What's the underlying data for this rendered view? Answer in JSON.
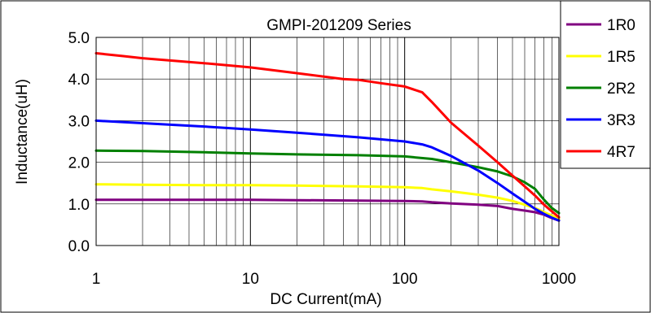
{
  "chart_data": {
    "type": "line",
    "title": "GMPI-201209 Series",
    "xlabel": "DC Current(mA)",
    "ylabel": "Inductance(uH)",
    "xscale": "log",
    "xlim": [
      1,
      1000
    ],
    "ylim": [
      0,
      5
    ],
    "x_ticks": [
      "1",
      "10",
      "100",
      "1000"
    ],
    "y_ticks": [
      "0.0",
      "1.0",
      "2.0",
      "3.0",
      "4.0",
      "5.0"
    ],
    "grid": true,
    "legend_position": "right",
    "series": [
      {
        "name": "1R0",
        "color": "#800080",
        "points": [
          [
            1,
            1.1
          ],
          [
            2,
            1.1
          ],
          [
            5,
            1.1
          ],
          [
            10,
            1.1
          ],
          [
            20,
            1.09
          ],
          [
            50,
            1.08
          ],
          [
            100,
            1.07
          ],
          [
            130,
            1.06
          ],
          [
            150,
            1.04
          ],
          [
            200,
            1.01
          ],
          [
            300,
            0.98
          ],
          [
            400,
            0.95
          ],
          [
            500,
            0.88
          ],
          [
            600,
            0.84
          ],
          [
            700,
            0.8
          ],
          [
            800,
            0.74
          ],
          [
            900,
            0.66
          ],
          [
            1000,
            0.6
          ]
        ]
      },
      {
        "name": "1R5",
        "color": "#ffff00",
        "points": [
          [
            1,
            1.47
          ],
          [
            2,
            1.46
          ],
          [
            5,
            1.45
          ],
          [
            10,
            1.45
          ],
          [
            20,
            1.44
          ],
          [
            50,
            1.42
          ],
          [
            100,
            1.4
          ],
          [
            130,
            1.38
          ],
          [
            150,
            1.35
          ],
          [
            200,
            1.3
          ],
          [
            300,
            1.22
          ],
          [
            400,
            1.15
          ],
          [
            500,
            1.07
          ],
          [
            600,
            0.98
          ],
          [
            700,
            0.9
          ],
          [
            800,
            0.8
          ],
          [
            900,
            0.72
          ],
          [
            1000,
            0.64
          ]
        ]
      },
      {
        "name": "2R2",
        "color": "#008000",
        "points": [
          [
            1,
            2.28
          ],
          [
            2,
            2.27
          ],
          [
            5,
            2.24
          ],
          [
            10,
            2.21
          ],
          [
            20,
            2.19
          ],
          [
            50,
            2.17
          ],
          [
            100,
            2.14
          ],
          [
            150,
            2.08
          ],
          [
            200,
            2.0
          ],
          [
            300,
            1.88
          ],
          [
            400,
            1.78
          ],
          [
            500,
            1.66
          ],
          [
            600,
            1.52
          ],
          [
            700,
            1.36
          ],
          [
            800,
            1.1
          ],
          [
            900,
            0.9
          ],
          [
            1000,
            0.78
          ]
        ]
      },
      {
        "name": "3R3",
        "color": "#0000ff",
        "points": [
          [
            1,
            3.0
          ],
          [
            2,
            2.94
          ],
          [
            5,
            2.86
          ],
          [
            10,
            2.79
          ],
          [
            20,
            2.71
          ],
          [
            50,
            2.6
          ],
          [
            100,
            2.5
          ],
          [
            130,
            2.43
          ],
          [
            150,
            2.36
          ],
          [
            200,
            2.15
          ],
          [
            300,
            1.8
          ],
          [
            400,
            1.5
          ],
          [
            500,
            1.25
          ],
          [
            600,
            1.05
          ],
          [
            700,
            0.88
          ],
          [
            800,
            0.76
          ],
          [
            900,
            0.67
          ],
          [
            1000,
            0.6
          ]
        ]
      },
      {
        "name": "4R7",
        "color": "#ff0000",
        "points": [
          [
            1,
            4.62
          ],
          [
            1.5,
            4.55
          ],
          [
            2,
            4.5
          ],
          [
            5,
            4.38
          ],
          [
            10,
            4.28
          ],
          [
            20,
            4.14
          ],
          [
            40,
            4.0
          ],
          [
            50,
            3.98
          ],
          [
            70,
            3.9
          ],
          [
            100,
            3.82
          ],
          [
            130,
            3.68
          ],
          [
            150,
            3.45
          ],
          [
            200,
            2.95
          ],
          [
            300,
            2.4
          ],
          [
            400,
            2.0
          ],
          [
            500,
            1.68
          ],
          [
            600,
            1.42
          ],
          [
            700,
            1.2
          ],
          [
            800,
            0.98
          ],
          [
            900,
            0.82
          ],
          [
            1000,
            0.68
          ]
        ]
      }
    ]
  }
}
